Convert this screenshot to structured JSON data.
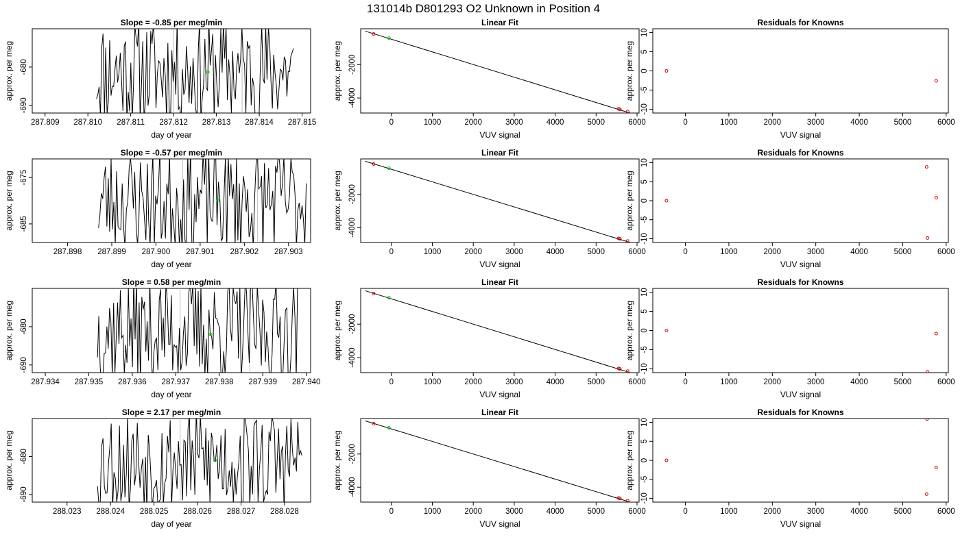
{
  "title": "131014b      D801293   O2 Unknown in Position  4",
  "colors": {
    "line": "#000000",
    "known": "#cc0000",
    "unknown": "#00cc00",
    "vline": "#bebebe"
  },
  "chart_data": [
    {
      "type": "line",
      "row": 0,
      "col": 0,
      "title": "Slope =  -0.85  per meg/min",
      "xlabel": "day of year",
      "ylabel": "approx. per meg",
      "xlim": [
        287.8087,
        287.8152
      ],
      "ylim": [
        -692,
        -670
      ],
      "xticks": [
        287.809,
        287.81,
        287.811,
        287.812,
        287.813,
        287.814,
        287.815
      ],
      "xtick_labels": [
        "287.809",
        "287.810",
        "287.811",
        "287.812",
        "287.813",
        "287.814",
        "287.815"
      ],
      "yticks": [
        -680,
        -690
      ],
      "ytick_labels": [
        "-680",
        "-690"
      ],
      "trace_start": 287.8102,
      "trace_end": 287.8148,
      "trace_points": 150,
      "seed": 11,
      "vlines": [
        287.812,
        287.8136
      ],
      "unknown_point": {
        "x": 287.8128,
        "y": -681.3
      }
    },
    {
      "type": "scatter",
      "row": 0,
      "col": 1,
      "title": "Linear Fit",
      "xlabel": "VUV signal",
      "ylabel": "approx. per meg",
      "xlim": [
        -750,
        6050
      ],
      "ylim": [
        -4900,
        140
      ],
      "xticks": [
        0,
        1000,
        2000,
        3000,
        4000,
        5000,
        6000
      ],
      "xtick_labels": [
        "0",
        "1000",
        "2000",
        "3000",
        "4000",
        "5000",
        "6000"
      ],
      "yticks": [
        -2000,
        -4000
      ],
      "ytick_labels": [
        "-2000",
        "-4000"
      ],
      "fit_line": [
        [
          -640,
          0
        ],
        [
          5830,
          -4900
        ]
      ],
      "known_points": [
        [
          -435,
          -170
        ],
        [
          5550,
          -4650
        ],
        [
          5580,
          -4680
        ],
        [
          5770,
          -4810
        ]
      ],
      "unknown_points": [
        [
          -60,
          -420
        ]
      ]
    },
    {
      "type": "scatter",
      "row": 0,
      "col": 2,
      "title": "Residuals for Knowns",
      "xlabel": "VUV signal",
      "ylabel": "approx. per meg",
      "xlim": [
        -750,
        6050
      ],
      "ylim": [
        -11,
        11
      ],
      "xticks": [
        0,
        1000,
        2000,
        3000,
        4000,
        5000,
        6000
      ],
      "xtick_labels": [
        "0",
        "1000",
        "2000",
        "3000",
        "4000",
        "5000",
        "6000"
      ],
      "yticks": [
        10,
        5,
        0,
        -5,
        -10
      ],
      "ytick_labels": [
        "10",
        "5",
        "0",
        "-5",
        "-10"
      ],
      "known_points": [
        [
          -435,
          0
        ],
        [
          5770,
          -2.6
        ]
      ]
    },
    {
      "type": "line",
      "row": 1,
      "col": 0,
      "title": "Slope =  -0.57  per meg/min",
      "xlabel": "day of year",
      "ylabel": "approx. per meg",
      "xlim": [
        287.8972,
        287.9035
      ],
      "ylim": [
        -689,
        -671
      ],
      "xticks": [
        287.898,
        287.899,
        287.9,
        287.901,
        287.902,
        287.903
      ],
      "xtick_labels": [
        "287.898",
        "287.899",
        "287.900",
        "287.901",
        "287.902",
        "287.903"
      ],
      "yticks": [
        -675,
        -685
      ],
      "ytick_labels": [
        "-675",
        "-685"
      ],
      "trace_start": 287.8987,
      "trace_end": 287.9034,
      "trace_points": 150,
      "seed": 23,
      "vlines": [
        287.9006,
        287.9023
      ],
      "unknown_point": {
        "x": 287.9014,
        "y": -680
      }
    },
    {
      "type": "scatter",
      "row": 1,
      "col": 1,
      "title": "Linear Fit",
      "xlabel": "VUV signal",
      "ylabel": "approx. per meg",
      "xlim": [
        -750,
        6050
      ],
      "ylim": [
        -4900,
        140
      ],
      "xticks": [
        0,
        1000,
        2000,
        3000,
        4000,
        5000,
        6000
      ],
      "xtick_labels": [
        "0",
        "1000",
        "2000",
        "3000",
        "4000",
        "5000",
        "6000"
      ],
      "yticks": [
        -2000,
        -4000
      ],
      "ytick_labels": [
        "-2000",
        "-4000"
      ],
      "fit_line": [
        [
          -640,
          0
        ],
        [
          5830,
          -4900
        ]
      ],
      "known_points": [
        [
          -435,
          -170
        ],
        [
          5550,
          -4650
        ],
        [
          5580,
          -4680
        ],
        [
          5770,
          -4810
        ]
      ],
      "unknown_points": [
        [
          -60,
          -420
        ]
      ]
    },
    {
      "type": "scatter",
      "row": 1,
      "col": 2,
      "title": "Residuals for Knowns",
      "xlabel": "VUV signal",
      "ylabel": "approx. per meg",
      "xlim": [
        -750,
        6050
      ],
      "ylim": [
        -11,
        11
      ],
      "xticks": [
        0,
        1000,
        2000,
        3000,
        4000,
        5000,
        6000
      ],
      "xtick_labels": [
        "0",
        "1000",
        "2000",
        "3000",
        "4000",
        "5000",
        "6000"
      ],
      "yticks": [
        10,
        5,
        0,
        -5,
        -10
      ],
      "ytick_labels": [
        "10",
        "5",
        "0",
        "-5",
        "-10"
      ],
      "known_points": [
        [
          -435,
          0
        ],
        [
          5550,
          8.9
        ],
        [
          5570,
          -9.8
        ],
        [
          5770,
          0.8
        ]
      ]
    },
    {
      "type": "line",
      "row": 2,
      "col": 0,
      "title": "Slope =  0.58  per meg/min",
      "xlabel": "day of year",
      "ylabel": "approx. per meg",
      "xlim": [
        287.9337,
        287.9401
      ],
      "ylim": [
        -692,
        -670
      ],
      "xticks": [
        287.934,
        287.935,
        287.936,
        287.937,
        287.938,
        287.939,
        287.94
      ],
      "xtick_labels": [
        "287.934",
        "287.935",
        "287.936",
        "287.937",
        "287.938",
        "287.939",
        "287.940"
      ],
      "yticks": [
        -680,
        -690
      ],
      "ytick_labels": [
        "-680",
        "-690"
      ],
      "trace_start": 287.9352,
      "trace_end": 287.9398,
      "trace_points": 150,
      "seed": 37,
      "vlines": [
        287.9371,
        287.9387
      ],
      "unknown_point": {
        "x": 287.9378,
        "y": -682
      }
    },
    {
      "type": "scatter",
      "row": 2,
      "col": 1,
      "title": "Linear Fit",
      "xlabel": "VUV signal",
      "ylabel": "approx. per meg",
      "xlim": [
        -750,
        6050
      ],
      "ylim": [
        -4900,
        140
      ],
      "xticks": [
        0,
        1000,
        2000,
        3000,
        4000,
        5000,
        6000
      ],
      "xtick_labels": [
        "0",
        "1000",
        "2000",
        "3000",
        "4000",
        "5000",
        "6000"
      ],
      "yticks": [
        -2000,
        -4000
      ],
      "ytick_labels": [
        "-2000",
        "-4000"
      ],
      "fit_line": [
        [
          -640,
          0
        ],
        [
          5830,
          -4900
        ]
      ],
      "known_points": [
        [
          -435,
          -170
        ],
        [
          5550,
          -4650
        ],
        [
          5580,
          -4680
        ],
        [
          5770,
          -4810
        ]
      ],
      "unknown_points": [
        [
          -60,
          -420
        ]
      ]
    },
    {
      "type": "scatter",
      "row": 2,
      "col": 2,
      "title": "Residuals for Knowns",
      "xlabel": "VUV signal",
      "ylabel": "approx. per meg",
      "xlim": [
        -750,
        6050
      ],
      "ylim": [
        -11,
        11
      ],
      "xticks": [
        0,
        1000,
        2000,
        3000,
        4000,
        5000,
        6000
      ],
      "xtick_labels": [
        "0",
        "1000",
        "2000",
        "3000",
        "4000",
        "5000",
        "6000"
      ],
      "yticks": [
        10,
        5,
        0,
        -5,
        -10
      ],
      "ytick_labels": [
        "10",
        "5",
        "0",
        "-5",
        "-10"
      ],
      "known_points": [
        [
          -435,
          0
        ],
        [
          5770,
          -0.8
        ],
        [
          5570,
          -10.8
        ]
      ]
    },
    {
      "type": "line",
      "row": 3,
      "col": 0,
      "title": "Slope =  2.17  per meg/min",
      "xlabel": "day of year",
      "ylabel": "approx. per meg",
      "xlim": [
        288.0222,
        288.0286
      ],
      "ylim": [
        -692,
        -670
      ],
      "xticks": [
        288.023,
        288.024,
        288.025,
        288.026,
        288.027,
        288.028
      ],
      "xtick_labels": [
        "288.023",
        "288.024",
        "288.025",
        "288.026",
        "288.027",
        "288.028"
      ],
      "yticks": [
        -680,
        -690
      ],
      "ytick_labels": [
        "-680",
        "-690"
      ],
      "trace_start": 288.0237,
      "trace_end": 288.0284,
      "trace_points": 150,
      "seed": 53,
      "vlines": [
        288.0256,
        288.0273
      ],
      "unknown_point": {
        "x": 288.0264,
        "y": -681
      }
    },
    {
      "type": "scatter",
      "row": 3,
      "col": 1,
      "title": "Linear Fit",
      "xlabel": "VUV signal",
      "ylabel": "approx. per meg",
      "xlim": [
        -750,
        6050
      ],
      "ylim": [
        -4900,
        140
      ],
      "xticks": [
        0,
        1000,
        2000,
        3000,
        4000,
        5000,
        6000
      ],
      "xtick_labels": [
        "0",
        "1000",
        "2000",
        "3000",
        "4000",
        "5000",
        "6000"
      ],
      "yticks": [
        -2000,
        -4000
      ],
      "ytick_labels": [
        "-2000",
        "-4000"
      ],
      "fit_line": [
        [
          -640,
          0
        ],
        [
          5830,
          -4900
        ]
      ],
      "known_points": [
        [
          -435,
          -170
        ],
        [
          5550,
          -4650
        ],
        [
          5580,
          -4680
        ],
        [
          5770,
          -4810
        ]
      ],
      "unknown_points": [
        [
          -60,
          -420
        ]
      ]
    },
    {
      "type": "scatter",
      "row": 3,
      "col": 2,
      "title": "Residuals for Knowns",
      "xlabel": "VUV signal",
      "ylabel": "approx. per meg",
      "xlim": [
        -750,
        6050
      ],
      "ylim": [
        -11,
        11
      ],
      "xticks": [
        0,
        1000,
        2000,
        3000,
        4000,
        5000,
        6000
      ],
      "xtick_labels": [
        "0",
        "1000",
        "2000",
        "3000",
        "4000",
        "5000",
        "6000"
      ],
      "yticks": [
        10,
        5,
        0,
        -5,
        -10
      ],
      "ytick_labels": [
        "10",
        "5",
        "0",
        "-5",
        "-10"
      ],
      "known_points": [
        [
          -435,
          0
        ],
        [
          5560,
          10.9
        ],
        [
          5550,
          -8.9
        ],
        [
          5770,
          -1.9
        ]
      ]
    }
  ]
}
